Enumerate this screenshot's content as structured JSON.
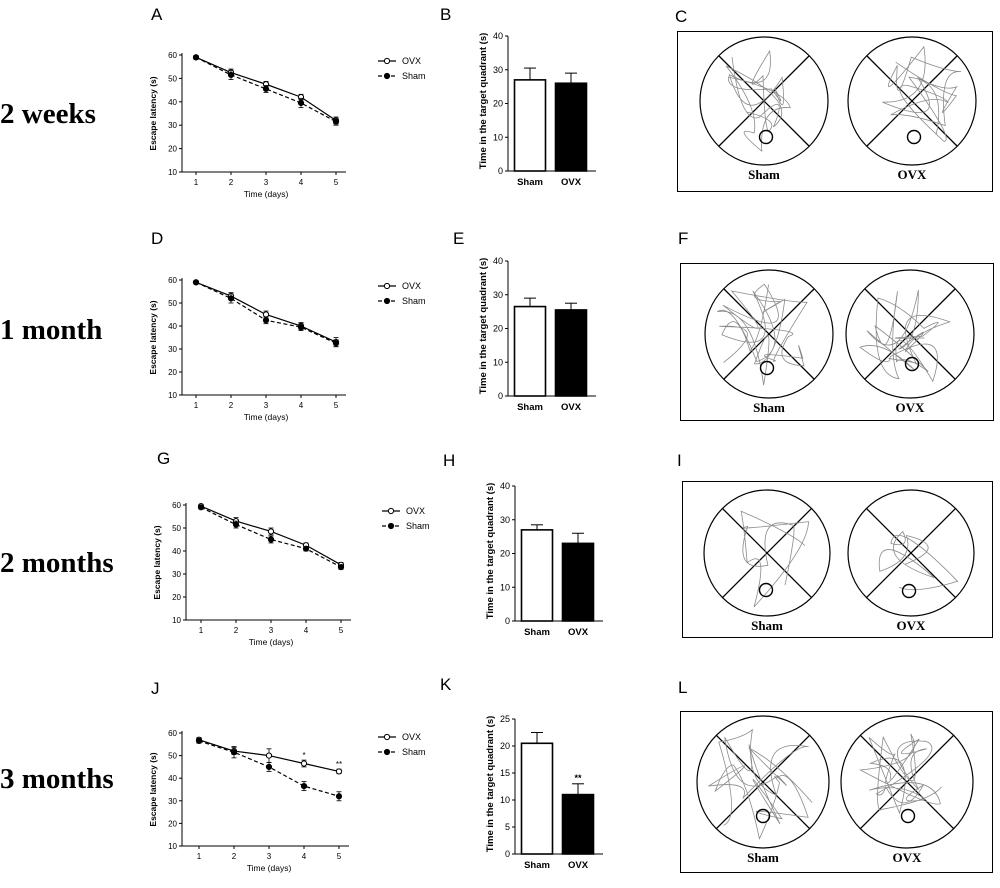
{
  "rows": [
    {
      "label": "2 weeks"
    },
    {
      "label": "1 month"
    },
    {
      "label": "2 months"
    },
    {
      "label": "3 months"
    }
  ],
  "colors": {
    "line": "#000000",
    "sham_bar": "#ffffff",
    "ovx_bar": "#000000",
    "path": "#8a8a8a"
  },
  "chart_data": [
    {
      "panel": "A",
      "type": "line",
      "xlabel": "Time (days)",
      "ylabel": "Escape latency (s)",
      "x": [
        1,
        2,
        3,
        4,
        5
      ],
      "xticks": [
        "1",
        "2",
        "3",
        "4",
        "5"
      ],
      "ylim": [
        10,
        60
      ],
      "yticks": [
        10,
        20,
        30,
        40,
        50,
        60
      ],
      "series": [
        {
          "name": "OVX",
          "values": [
            59,
            52.5,
            47.5,
            42,
            32
          ],
          "err": [
            0.8,
            1.5,
            1.2,
            1.2,
            1.5
          ],
          "marker": "open",
          "dash": "solid"
        },
        {
          "name": "Sham",
          "values": [
            59,
            51.5,
            45.5,
            39.5,
            31.5
          ],
          "err": [
            0.8,
            2,
            1.5,
            2,
            1.5
          ],
          "marker": "filled",
          "dash": "dashed"
        }
      ],
      "signif": []
    },
    {
      "panel": "B",
      "type": "bar",
      "ylabel": "Time in the target quadrant (s)",
      "categories": [
        "Sham",
        "OVX"
      ],
      "values": [
        27,
        26
      ],
      "err": [
        3.5,
        3
      ],
      "ylim": [
        0,
        40
      ],
      "yticks": [
        0,
        10,
        20,
        30,
        40
      ],
      "signif": [
        "",
        ""
      ]
    },
    {
      "panel": "D",
      "type": "line",
      "xlabel": "Time (days)",
      "ylabel": "Escape latency (s)",
      "x": [
        1,
        2,
        3,
        4,
        5
      ],
      "xticks": [
        "1",
        "2",
        "3",
        "4",
        "5"
      ],
      "ylim": [
        10,
        60
      ],
      "yticks": [
        10,
        20,
        30,
        40,
        50,
        60
      ],
      "series": [
        {
          "name": "OVX",
          "values": [
            59,
            53,
            45,
            40,
            33
          ],
          "err": [
            0.8,
            1.5,
            1.5,
            1.5,
            2
          ],
          "marker": "open",
          "dash": "solid"
        },
        {
          "name": "Sham",
          "values": [
            59,
            52,
            42.5,
            39.5,
            32.5
          ],
          "err": [
            0.8,
            2,
            1.5,
            1.5,
            1.5
          ],
          "marker": "filled",
          "dash": "dashed"
        }
      ],
      "signif": []
    },
    {
      "panel": "E",
      "type": "bar",
      "ylabel": "Time in the target quadrant (s)",
      "categories": [
        "Sham",
        "OVX"
      ],
      "values": [
        26.5,
        25.5
      ],
      "err": [
        2.5,
        2
      ],
      "ylim": [
        0,
        40
      ],
      "yticks": [
        0,
        10,
        20,
        30,
        40
      ],
      "signif": [
        "",
        ""
      ]
    },
    {
      "panel": "G",
      "type": "line",
      "xlabel": "Time (days)",
      "ylabel": "Escape latency (s)",
      "x": [
        1,
        2,
        3,
        4,
        5
      ],
      "xticks": [
        "1",
        "2",
        "3",
        "4",
        "5"
      ],
      "ylim": [
        10,
        60
      ],
      "yticks": [
        10,
        20,
        30,
        40,
        50,
        60
      ],
      "series": [
        {
          "name": "OVX",
          "values": [
            59.5,
            53,
            48.5,
            42.5,
            34
          ],
          "err": [
            0.8,
            1.5,
            1.5,
            1,
            1
          ],
          "marker": "open",
          "dash": "solid"
        },
        {
          "name": "Sham",
          "values": [
            59,
            51.5,
            45,
            41,
            33
          ],
          "err": [
            0.8,
            1.5,
            1.5,
            1,
            1
          ],
          "marker": "filled",
          "dash": "dashed"
        }
      ],
      "signif": []
    },
    {
      "panel": "H",
      "type": "bar",
      "ylabel": "Time in the target quadrant (s)",
      "categories": [
        "Sham",
        "OVX"
      ],
      "values": [
        27,
        23
      ],
      "err": [
        1.5,
        3
      ],
      "ylim": [
        0,
        40
      ],
      "yticks": [
        0,
        10,
        20,
        30,
        40
      ],
      "signif": [
        "",
        ""
      ]
    },
    {
      "panel": "J",
      "type": "line",
      "xlabel": "Time (days)",
      "ylabel": "Escape latency (s)",
      "x": [
        1,
        2,
        3,
        4,
        5
      ],
      "xticks": [
        "1",
        "2",
        "3",
        "4",
        "5"
      ],
      "ylim": [
        10,
        60
      ],
      "yticks": [
        10,
        20,
        30,
        40,
        50,
        60
      ],
      "series": [
        {
          "name": "OVX",
          "values": [
            57,
            52,
            50,
            46.5,
            43
          ],
          "err": [
            1,
            1.5,
            3,
            1.5,
            1
          ],
          "marker": "open",
          "dash": "solid"
        },
        {
          "name": "Sham",
          "values": [
            56.5,
            51.5,
            45,
            36.5,
            32
          ],
          "err": [
            1,
            2.5,
            2,
            2,
            2
          ],
          "marker": "filled",
          "dash": "dashed"
        }
      ],
      "signif": [
        "",
        "",
        "",
        "*",
        "**"
      ]
    },
    {
      "panel": "K",
      "type": "bar",
      "ylabel": "Time in the target quadrant (s)",
      "categories": [
        "Sham",
        "OVX"
      ],
      "values": [
        20.5,
        11
      ],
      "err": [
        2,
        2
      ],
      "ylim": [
        0,
        25
      ],
      "yticks": [
        0,
        5,
        10,
        15,
        20,
        25
      ],
      "signif": [
        "",
        "**"
      ]
    }
  ],
  "mazes": [
    {
      "panel": "C",
      "labels": [
        "Sham",
        "OVX"
      ]
    },
    {
      "panel": "F",
      "labels": [
        "Sham",
        "OVX"
      ]
    },
    {
      "panel": "I",
      "labels": [
        "Sham",
        "OVX"
      ]
    },
    {
      "panel": "L",
      "labels": [
        "Sham",
        "OVX"
      ]
    }
  ]
}
